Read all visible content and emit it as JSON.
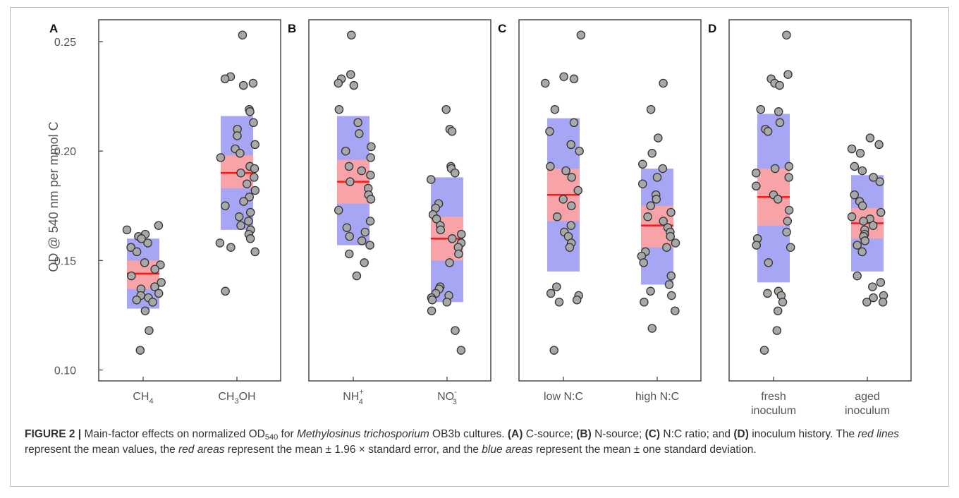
{
  "caption": {
    "label": "FIGURE 2 |",
    "t1": " Main-factor effects on normalized OD",
    "t1_sub": "540",
    "t2": " for ",
    "species": "Methylosinus trichosporium",
    "t3": " OB3b cultures. ",
    "a": "(A)",
    "t4": " C-source; ",
    "b": "(B)",
    "t5": " N-source; ",
    "c": "(C)",
    "t6": " N:C ratio; and ",
    "d": "(D)",
    "t7": " inoculum history. The ",
    "red_lines": "red lines",
    "t8": " represent the mean values, the ",
    "red_areas": "red areas",
    "t9": " represent the mean ± 1.96 × standard error, and the ",
    "blue_areas": "blue areas",
    "t10": " represent the mean ± one standard deviation."
  },
  "chart_data": {
    "type": "scatter",
    "ylabel": "OD @ 540 nm per mmol C",
    "ylim": [
      0.095,
      0.26
    ],
    "yticks": [
      0.1,
      0.15,
      0.2,
      0.25
    ],
    "ytick_labels": [
      "0.10",
      "0.15",
      "0.20",
      "0.25"
    ],
    "colors": {
      "mean_line": "#ff1a1a",
      "ci_area": "#f7a3a8",
      "sd_area": "#a6a6f5",
      "point_fill": "#a8a8a8",
      "point_edge": "#333333"
    },
    "panels": [
      {
        "letter": "A",
        "groups": [
          {
            "label": "CH",
            "sub": "4",
            "sup": "",
            "label2": "",
            "mean": 0.144,
            "ci": [
              0.137,
              0.15
            ],
            "sd": [
              0.128,
              0.16
            ],
            "points": [
              0.166,
              0.164,
              0.162,
              0.161,
              0.16,
              0.158,
              0.156,
              0.154,
              0.149,
              0.148,
              0.146,
              0.143,
              0.14,
              0.138,
              0.137,
              0.135,
              0.134,
              0.133,
              0.132,
              0.131,
              0.127,
              0.118,
              0.109
            ]
          },
          {
            "label": "CH",
            "sub": "3",
            "sup": "",
            "label2": "OH",
            "mean": 0.19,
            "ci": [
              0.183,
              0.198
            ],
            "sd": [
              0.164,
              0.216
            ],
            "points": [
              0.253,
              0.234,
              0.233,
              0.231,
              0.23,
              0.219,
              0.218,
              0.213,
              0.21,
              0.207,
              0.203,
              0.201,
              0.199,
              0.197,
              0.193,
              0.192,
              0.19,
              0.188,
              0.185,
              0.182,
              0.179,
              0.177,
              0.175,
              0.172,
              0.17,
              0.168,
              0.166,
              0.164,
              0.162,
              0.16,
              0.158,
              0.156,
              0.154,
              0.136
            ]
          }
        ]
      },
      {
        "letter": "B",
        "groups": [
          {
            "label": "NH",
            "sub": "4",
            "sup": "+",
            "label2": "",
            "mean": 0.186,
            "ci": [
              0.176,
              0.196
            ],
            "sd": [
              0.157,
              0.216
            ],
            "points": [
              0.253,
              0.235,
              0.233,
              0.231,
              0.23,
              0.219,
              0.213,
              0.208,
              0.202,
              0.2,
              0.197,
              0.193,
              0.191,
              0.189,
              0.186,
              0.183,
              0.18,
              0.178,
              0.173,
              0.168,
              0.165,
              0.163,
              0.161,
              0.159,
              0.157,
              0.153,
              0.149,
              0.143
            ]
          },
          {
            "label": "NO",
            "sub": "3",
            "sup": "-",
            "label2": "",
            "mean": 0.16,
            "ci": [
              0.15,
              0.17
            ],
            "sd": [
              0.131,
              0.188
            ],
            "points": [
              0.219,
              0.21,
              0.209,
              0.193,
              0.192,
              0.19,
              0.187,
              0.176,
              0.174,
              0.171,
              0.169,
              0.166,
              0.164,
              0.162,
              0.16,
              0.158,
              0.156,
              0.153,
              0.149,
              0.138,
              0.137,
              0.135,
              0.134,
              0.133,
              0.132,
              0.131,
              0.127,
              0.118,
              0.109
            ]
          }
        ]
      },
      {
        "letter": "C",
        "groups": [
          {
            "label": "low N:C",
            "sub": "",
            "sup": "",
            "label2": "",
            "mean": 0.18,
            "ci": [
              0.168,
              0.192
            ],
            "sd": [
              0.145,
              0.215
            ],
            "points": [
              0.253,
              0.234,
              0.233,
              0.231,
              0.219,
              0.213,
              0.209,
              0.203,
              0.2,
              0.193,
              0.191,
              0.188,
              0.182,
              0.178,
              0.175,
              0.17,
              0.166,
              0.163,
              0.161,
              0.158,
              0.156,
              0.138,
              0.135,
              0.134,
              0.132,
              0.131,
              0.109
            ]
          },
          {
            "label": "high N:C",
            "sub": "",
            "sup": "",
            "label2": "",
            "mean": 0.166,
            "ci": [
              0.156,
              0.175
            ],
            "sd": [
              0.139,
              0.192
            ],
            "points": [
              0.231,
              0.219,
              0.206,
              0.199,
              0.194,
              0.192,
              0.188,
              0.185,
              0.18,
              0.178,
              0.175,
              0.172,
              0.17,
              0.168,
              0.165,
              0.163,
              0.161,
              0.158,
              0.156,
              0.154,
              0.152,
              0.149,
              0.143,
              0.139,
              0.136,
              0.134,
              0.131,
              0.127,
              0.119
            ]
          }
        ]
      },
      {
        "letter": "D",
        "groups": [
          {
            "label": "fresh",
            "sub": "",
            "sup": "",
            "label2": "inoculum",
            "mean": 0.179,
            "ci": [
              0.166,
              0.192
            ],
            "sd": [
              0.14,
              0.217
            ],
            "points": [
              0.253,
              0.235,
              0.233,
              0.231,
              0.23,
              0.219,
              0.218,
              0.213,
              0.21,
              0.209,
              0.193,
              0.192,
              0.19,
              0.188,
              0.184,
              0.18,
              0.178,
              0.173,
              0.168,
              0.163,
              0.16,
              0.157,
              0.156,
              0.149,
              0.136,
              0.135,
              0.134,
              0.131,
              0.127,
              0.118,
              0.109
            ]
          },
          {
            "label": "aged",
            "sub": "",
            "sup": "",
            "label2": "inoculum",
            "mean": 0.167,
            "ci": [
              0.16,
              0.174
            ],
            "sd": [
              0.145,
              0.189
            ],
            "points": [
              0.206,
              0.203,
              0.201,
              0.199,
              0.193,
              0.191,
              0.188,
              0.186,
              0.18,
              0.177,
              0.175,
              0.172,
              0.17,
              0.169,
              0.168,
              0.166,
              0.164,
              0.162,
              0.161,
              0.159,
              0.157,
              0.154,
              0.143,
              0.14,
              0.138,
              0.134,
              0.133,
              0.131,
              0.131
            ]
          }
        ]
      }
    ]
  }
}
